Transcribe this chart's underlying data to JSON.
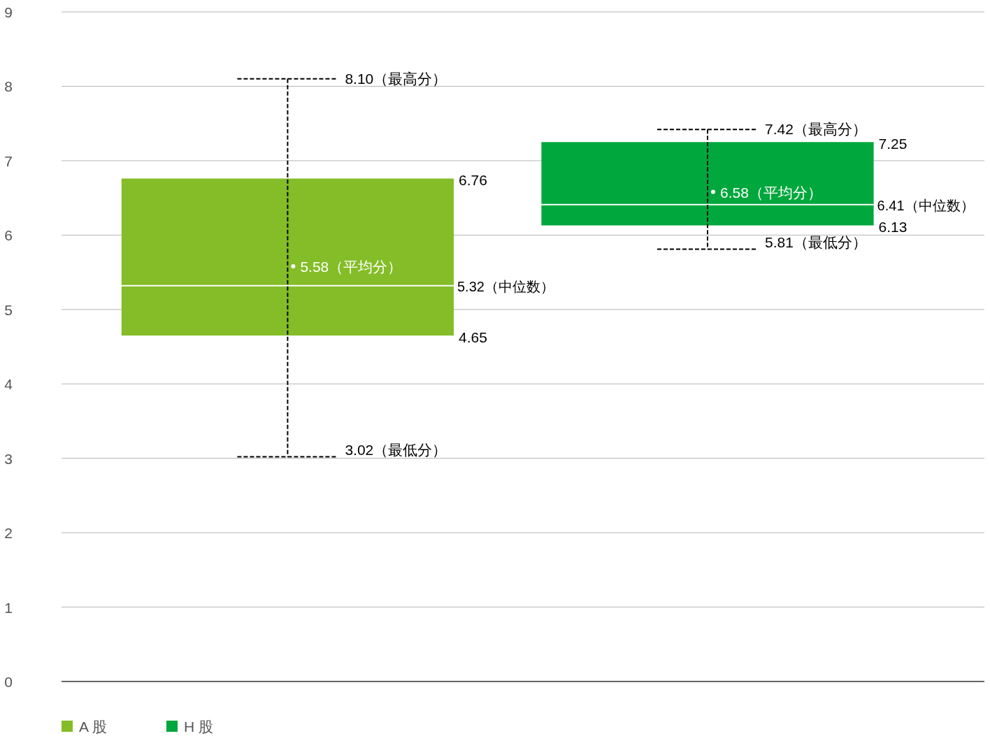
{
  "chart_data": {
    "type": "box",
    "categories": [
      null,
      null
    ],
    "series": [
      {
        "name": "A 股",
        "color": "#84bd28",
        "boxes": [
          {
            "low": 3.02,
            "q1": 4.65,
            "median": 5.32,
            "q3": 6.76,
            "high": 8.1,
            "mean": 5.58
          },
          null
        ],
        "value_labels": [
          [
            "8.10（最高分）",
            "6.76",
            "5.58（平均分）",
            "5.32（中位数）",
            "4.65",
            "3.02（最低分）"
          ],
          null
        ]
      },
      {
        "name": "H 股",
        "color": "#00a73c",
        "boxes": [
          null,
          {
            "low": 5.81,
            "q1": 6.13,
            "median": 6.41,
            "q3": 7.25,
            "high": 7.42,
            "mean": 6.58
          }
        ],
        "value_labels": [
          null,
          [
            "7.42（最高分）",
            "7.25",
            "6.58（平均分）",
            "6.41（中位数）",
            "6.13",
            "5.81（最低分）"
          ]
        ]
      }
    ],
    "ylim": [
      0,
      9
    ],
    "yticks": [
      0,
      1,
      2,
      3,
      4,
      5,
      6,
      7,
      8,
      9
    ],
    "grid": "y",
    "legend": "bottom left",
    "line_style": "dashed"
  }
}
